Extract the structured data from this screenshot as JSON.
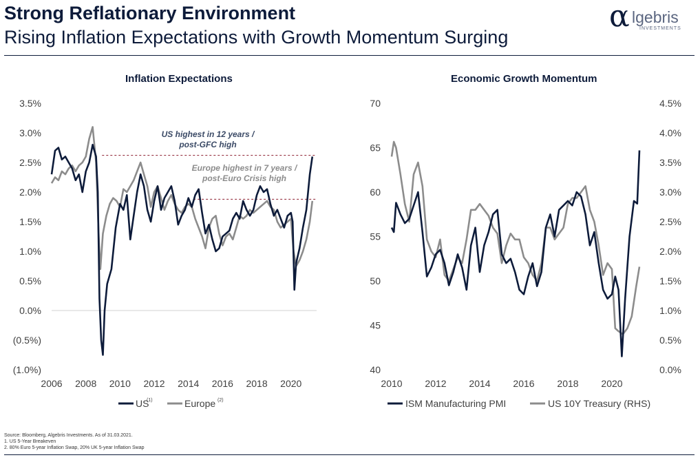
{
  "header": {
    "title": "Strong Reflationary Environment",
    "subtitle": "Rising Inflation Expectations with Growth Momentum Surging"
  },
  "logo": {
    "symbol": "α",
    "word": "lgebris",
    "sub": "INVESTMENTS"
  },
  "colors": {
    "navy": "#0d1b3a",
    "grey": "#8c8c8c",
    "dashed": "#8b1a2b"
  },
  "footnotes": [
    "Source: Bloomberg, Algebris Investments.  As of 31.03.2021.",
    "1.  US 5-Year Breakeven",
    "2.  80% Euro 5-year Inflation Swap, 20% UK 5-year Inflation Swap"
  ],
  "chart_data": [
    {
      "type": "line",
      "title": "Inflation Expectations",
      "x_ticks": [
        "2006",
        "2008",
        "2010",
        "2012",
        "2014",
        "2016",
        "2018",
        "2020"
      ],
      "y_ticks": [
        "3.5%",
        "3.0%",
        "2.5%",
        "2.0%",
        "1.5%",
        "1.0%",
        "0.5%",
        "0.0%",
        "(0.5%)",
        "(1.0%)"
      ],
      "xlim": [
        2006,
        2021.5
      ],
      "ylim": [
        -1.0,
        3.5
      ],
      "annotations": [
        {
          "text_lines": [
            "US highest in 12 years /",
            "post-GFC high"
          ],
          "color": "#3b4a66"
        },
        {
          "text_lines": [
            "Europe highest in 7 years /",
            "post-Euro Crisis high"
          ],
          "color": "#8c8c8c"
        }
      ],
      "reference_lines": [
        2.62,
        1.88
      ],
      "series": [
        {
          "name": "US",
          "legend_sup": "(1)",
          "color": "#0d1b3a",
          "x": [
            2006.0,
            2006.2,
            2006.4,
            2006.6,
            2006.8,
            2007.0,
            2007.2,
            2007.4,
            2007.6,
            2007.8,
            2008.0,
            2008.2,
            2008.4,
            2008.6,
            2008.7,
            2008.8,
            2008.9,
            2009.0,
            2009.1,
            2009.25,
            2009.5,
            2009.75,
            2010.0,
            2010.2,
            2010.4,
            2010.6,
            2010.8,
            2011.0,
            2011.2,
            2011.4,
            2011.6,
            2011.8,
            2012.0,
            2012.2,
            2012.4,
            2012.6,
            2012.8,
            2013.0,
            2013.2,
            2013.4,
            2013.6,
            2013.8,
            2014.0,
            2014.2,
            2014.4,
            2014.6,
            2014.8,
            2015.0,
            2015.2,
            2015.4,
            2015.6,
            2015.8,
            2016.0,
            2016.2,
            2016.4,
            2016.6,
            2016.8,
            2017.0,
            2017.2,
            2017.4,
            2017.6,
            2017.8,
            2018.0,
            2018.2,
            2018.4,
            2018.6,
            2018.8,
            2019.0,
            2019.2,
            2019.4,
            2019.6,
            2019.8,
            2020.0,
            2020.1,
            2020.2,
            2020.3,
            2020.5,
            2020.7,
            2020.9,
            2021.1,
            2021.25
          ],
          "y": [
            2.3,
            2.7,
            2.75,
            2.55,
            2.6,
            2.5,
            2.4,
            2.2,
            2.3,
            2.0,
            2.35,
            2.5,
            2.8,
            2.6,
            2.0,
            0.2,
            -0.5,
            -0.75,
            0.0,
            0.45,
            0.7,
            1.4,
            1.8,
            1.7,
            1.95,
            1.2,
            1.6,
            2.0,
            2.3,
            2.1,
            1.7,
            1.5,
            1.85,
            2.1,
            1.7,
            1.9,
            2.0,
            2.1,
            1.85,
            1.45,
            1.6,
            1.7,
            1.9,
            1.75,
            1.95,
            2.05,
            1.65,
            1.3,
            1.45,
            1.2,
            1.0,
            1.05,
            1.25,
            1.3,
            1.35,
            1.55,
            1.65,
            1.55,
            1.85,
            1.7,
            1.6,
            1.7,
            1.95,
            2.1,
            2.0,
            2.05,
            1.8,
            1.6,
            1.7,
            1.55,
            1.4,
            1.6,
            1.65,
            1.5,
            0.35,
            0.8,
            1.05,
            1.4,
            1.7,
            2.3,
            2.6
          ]
        },
        {
          "name": "Europe",
          "legend_sup": "(2)",
          "color": "#8c8c8c",
          "x": [
            2006.0,
            2006.2,
            2006.4,
            2006.6,
            2006.8,
            2007.0,
            2007.2,
            2007.4,
            2007.6,
            2007.8,
            2008.0,
            2008.2,
            2008.4,
            2008.6,
            2008.75,
            2008.85,
            2009.0,
            2009.2,
            2009.4,
            2009.6,
            2009.8,
            2010.0,
            2010.2,
            2010.4,
            2010.6,
            2010.8,
            2011.0,
            2011.2,
            2011.4,
            2011.6,
            2011.8,
            2012.0,
            2012.2,
            2012.4,
            2012.6,
            2012.8,
            2013.0,
            2013.2,
            2013.4,
            2013.6,
            2013.8,
            2014.0,
            2014.2,
            2014.4,
            2014.6,
            2014.8,
            2015.0,
            2015.2,
            2015.4,
            2015.6,
            2015.8,
            2016.0,
            2016.2,
            2016.4,
            2016.6,
            2016.8,
            2017.0,
            2017.2,
            2017.4,
            2017.6,
            2017.8,
            2018.0,
            2018.2,
            2018.4,
            2018.6,
            2018.8,
            2019.0,
            2019.2,
            2019.4,
            2019.6,
            2019.8,
            2020.0,
            2020.15,
            2020.3,
            2020.5,
            2020.7,
            2020.9,
            2021.1,
            2021.25
          ],
          "y": [
            2.15,
            2.25,
            2.2,
            2.35,
            2.3,
            2.4,
            2.45,
            2.35,
            2.45,
            2.5,
            2.6,
            2.9,
            3.1,
            2.5,
            1.3,
            0.7,
            1.3,
            1.6,
            1.8,
            1.9,
            1.85,
            1.75,
            2.05,
            2.0,
            2.1,
            2.2,
            2.35,
            2.5,
            2.3,
            2.1,
            1.75,
            2.0,
            2.1,
            1.9,
            1.7,
            1.85,
            1.95,
            1.8,
            1.7,
            1.65,
            1.75,
            1.8,
            1.75,
            1.55,
            1.4,
            1.25,
            1.05,
            1.4,
            1.55,
            1.6,
            1.3,
            1.1,
            1.25,
            1.3,
            1.2,
            1.4,
            1.6,
            1.55,
            1.6,
            1.7,
            1.65,
            1.7,
            1.75,
            1.8,
            1.85,
            1.75,
            1.7,
            1.5,
            1.4,
            1.45,
            1.5,
            1.55,
            1.0,
            0.75,
            0.85,
            1.0,
            1.2,
            1.5,
            1.85
          ]
        }
      ]
    },
    {
      "type": "line",
      "title": "Economic Growth Momentum",
      "x_ticks": [
        "2010",
        "2012",
        "2014",
        "2016",
        "2018",
        "2020"
      ],
      "y_ticks_left": [
        "70",
        "65",
        "60",
        "55",
        "50",
        "45",
        "40"
      ],
      "y_ticks_right": [
        "4.5%",
        "4.0%",
        "3.5%",
        "3.0%",
        "2.5%",
        "2.0%",
        "1.5%",
        "1.0%",
        "0.5%",
        "0.0%"
      ],
      "xlim": [
        2010,
        2021.5
      ],
      "ylim_left": [
        40,
        70
      ],
      "ylim_right": [
        0.0,
        4.5
      ],
      "series": [
        {
          "name": "ISM Manufacturing PMI",
          "axis": "left",
          "color": "#0d1b3a",
          "x": [
            2010.0,
            2010.1,
            2010.2,
            2010.4,
            2010.6,
            2010.8,
            2011.0,
            2011.2,
            2011.4,
            2011.6,
            2011.8,
            2012.0,
            2012.2,
            2012.4,
            2012.6,
            2012.8,
            2013.0,
            2013.2,
            2013.4,
            2013.6,
            2013.8,
            2014.0,
            2014.2,
            2014.4,
            2014.6,
            2014.8,
            2015.0,
            2015.2,
            2015.4,
            2015.6,
            2015.8,
            2016.0,
            2016.2,
            2016.4,
            2016.6,
            2016.8,
            2017.0,
            2017.2,
            2017.4,
            2017.6,
            2017.8,
            2018.0,
            2018.2,
            2018.4,
            2018.6,
            2018.8,
            2019.0,
            2019.2,
            2019.4,
            2019.6,
            2019.8,
            2020.0,
            2020.15,
            2020.3,
            2020.45,
            2020.6,
            2020.8,
            2021.0,
            2021.15,
            2021.25
          ],
          "y": [
            56,
            55.5,
            58.8,
            57.5,
            56.5,
            57,
            58.5,
            60,
            55.5,
            50.5,
            51.5,
            53,
            53.5,
            52,
            49.5,
            51,
            53,
            51.5,
            49,
            54,
            56,
            51,
            54,
            55.5,
            57.5,
            58,
            53,
            52,
            52.5,
            51,
            49,
            48.5,
            50.5,
            52,
            49.4,
            51,
            56,
            57.5,
            55,
            58,
            58.5,
            59,
            58.5,
            60,
            59.5,
            57.5,
            54,
            55.5,
            52,
            49,
            48,
            48.5,
            50.5,
            49,
            41.5,
            48,
            55,
            59,
            58.7,
            64.7
          ]
        },
        {
          "name": "US 10Y Treasury (RHS)",
          "axis": "right",
          "color": "#8c8c8c",
          "x": [
            2010.0,
            2010.1,
            2010.2,
            2010.4,
            2010.6,
            2010.8,
            2011.0,
            2011.2,
            2011.4,
            2011.6,
            2011.8,
            2012.0,
            2012.2,
            2012.4,
            2012.6,
            2012.8,
            2013.0,
            2013.2,
            2013.4,
            2013.6,
            2013.8,
            2014.0,
            2014.2,
            2014.4,
            2014.6,
            2014.8,
            2015.0,
            2015.2,
            2015.4,
            2015.6,
            2015.8,
            2016.0,
            2016.2,
            2016.4,
            2016.6,
            2016.8,
            2017.0,
            2017.2,
            2017.4,
            2017.6,
            2017.8,
            2018.0,
            2018.2,
            2018.4,
            2018.6,
            2018.8,
            2019.0,
            2019.2,
            2019.4,
            2019.6,
            2019.8,
            2020.0,
            2020.15,
            2020.3,
            2020.5,
            2020.7,
            2020.9,
            2021.1,
            2021.25
          ],
          "y": [
            3.6,
            3.85,
            3.75,
            3.3,
            2.8,
            2.5,
            3.3,
            3.5,
            3.1,
            2.2,
            2.0,
            1.9,
            2.2,
            1.6,
            1.5,
            1.7,
            1.9,
            1.8,
            2.2,
            2.7,
            2.7,
            2.8,
            2.7,
            2.6,
            2.4,
            2.3,
            1.8,
            2.1,
            2.3,
            2.2,
            2.2,
            1.9,
            1.8,
            1.6,
            1.5,
            1.8,
            2.4,
            2.4,
            2.2,
            2.3,
            2.4,
            2.8,
            2.9,
            2.9,
            3.0,
            3.1,
            2.7,
            2.5,
            2.1,
            1.6,
            1.8,
            1.7,
            0.7,
            0.65,
            0.6,
            0.7,
            0.9,
            1.4,
            1.74
          ]
        }
      ]
    }
  ]
}
